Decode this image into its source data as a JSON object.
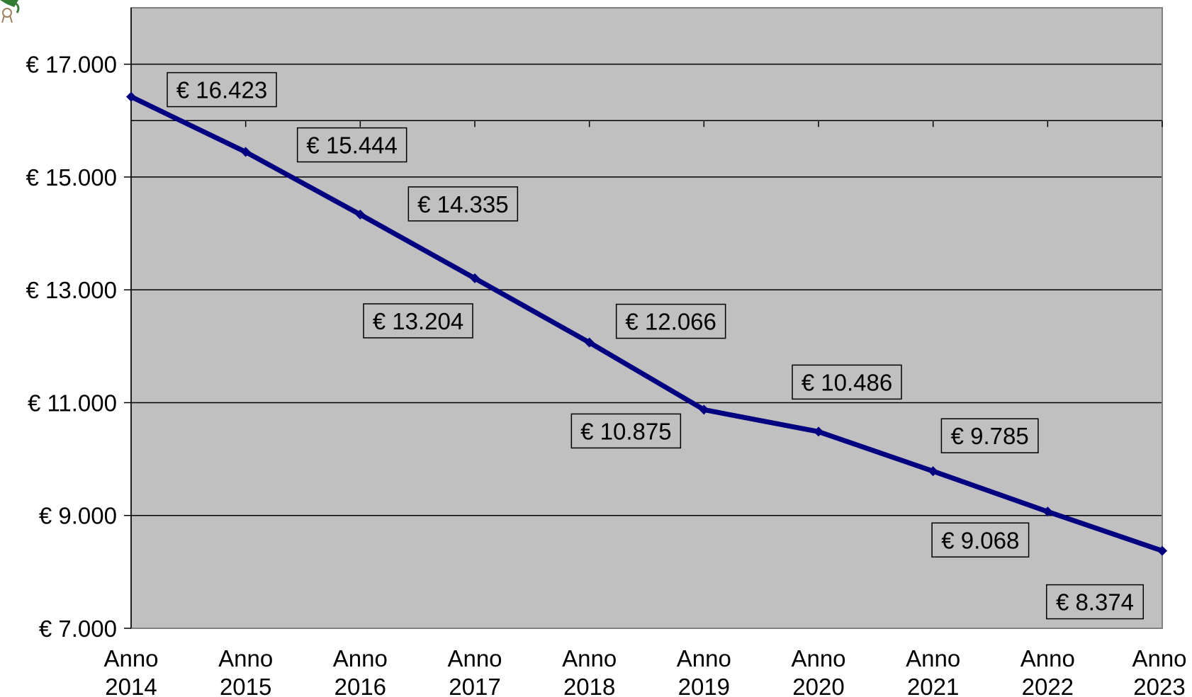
{
  "chart_data": {
    "type": "line",
    "title": "",
    "xlabel": "",
    "ylabel": "",
    "categories": [
      [
        "Anno",
        "2014"
      ],
      [
        "Anno",
        "2015"
      ],
      [
        "Anno",
        "2016"
      ],
      [
        "Anno",
        "2017"
      ],
      [
        "Anno",
        "2018"
      ],
      [
        "Anno",
        "2019"
      ],
      [
        "Anno",
        "2020"
      ],
      [
        "Anno",
        "2021"
      ],
      [
        "Anno",
        "2022"
      ],
      [
        "Anno",
        "2023"
      ]
    ],
    "series": [
      {
        "values": [
          16423,
          15444,
          14335,
          13204,
          12066,
          10875,
          10486,
          9785,
          9068,
          8374
        ],
        "labels": [
          "€ 16.423",
          "€ 15.444",
          "€ 14.335",
          "€ 13.204",
          "€ 12.066",
          "€ 10.875",
          "€ 10.486",
          "€ 9.785",
          "€ 9.068",
          "€ 8.374"
        ],
        "color": "#000080"
      }
    ],
    "ylim": [
      7000,
      18000
    ],
    "yticks": [
      7000,
      9000,
      11000,
      13000,
      15000,
      17000
    ],
    "ytick_labels": [
      "€ 7.000",
      "€ 9.000",
      "€ 11.000",
      "€ 13.000",
      "€ 15.000",
      "€ 17.000"
    ],
    "grid": true,
    "legend": "none",
    "plot_background": "#c0c0c0",
    "gridline_color": "#000000"
  }
}
